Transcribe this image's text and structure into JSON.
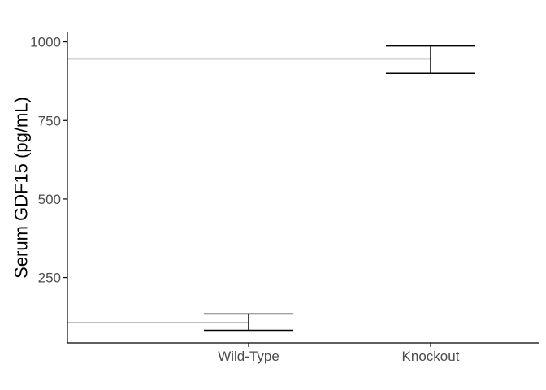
{
  "chart_data": {
    "type": "errorbar",
    "title": "",
    "xlabel": "",
    "ylabel": "Serum GDF15 (pg/mL)",
    "categories": [
      "Wild-Type",
      "Knockout"
    ],
    "values": [
      108,
      945
    ],
    "error_low": [
      82,
      900
    ],
    "error_high": [
      134,
      987
    ],
    "ylim": [
      42,
      1030
    ],
    "yticks": [
      250,
      500,
      750,
      1000
    ],
    "grid": false,
    "legend": "none",
    "colors": {
      "axis": "#000000",
      "tick_text": "#4d4d4d",
      "errorbar": "#000000",
      "reference_line": "#bdbdbd"
    }
  }
}
